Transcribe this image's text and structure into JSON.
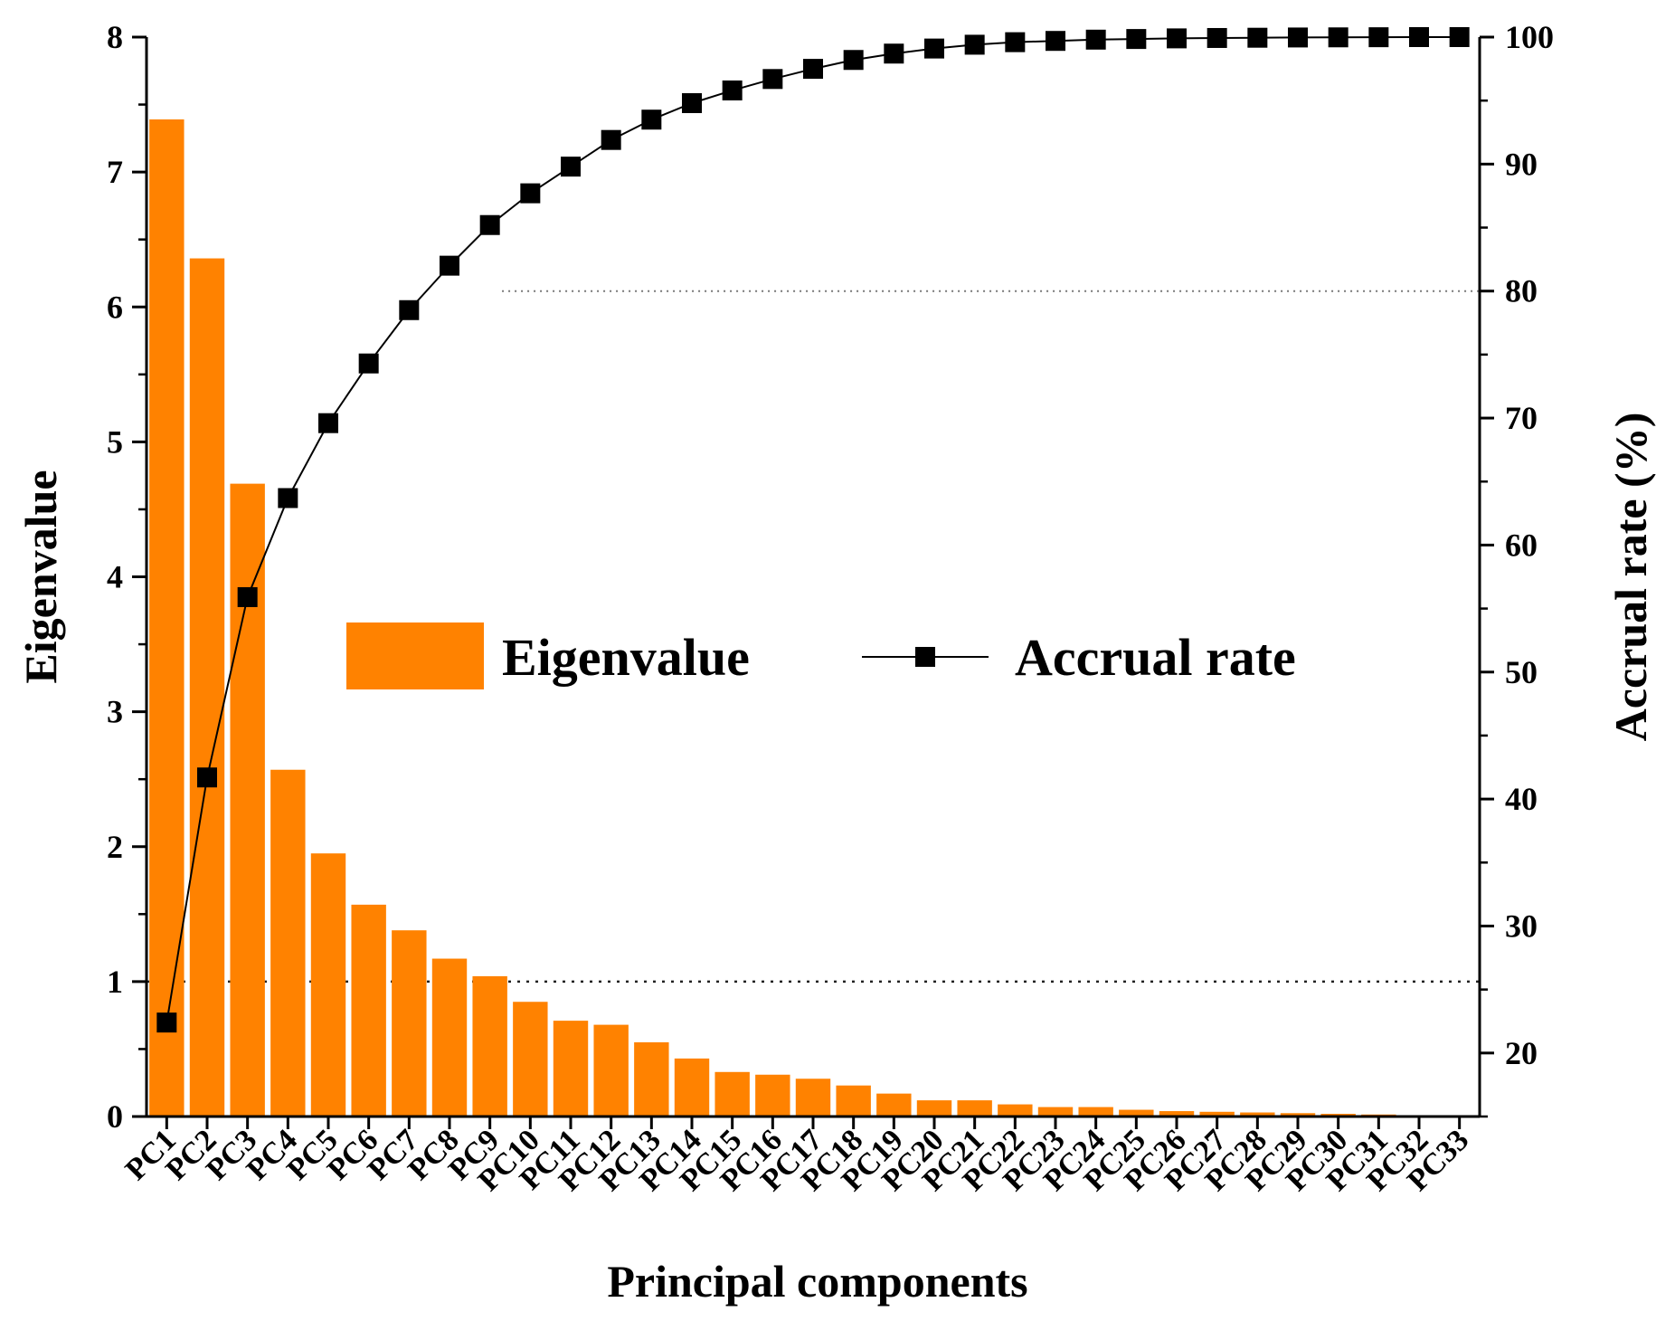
{
  "chart_data": {
    "type": "bar+line",
    "title": "",
    "xlabel": "Principal components",
    "ylabel_left": "Eigenvalue",
    "ylabel_right": "Accrual rate (%)",
    "ylim_left": [
      0,
      8
    ],
    "ylim_right": [
      15,
      100
    ],
    "yticks_left": [
      0,
      1,
      2,
      3,
      4,
      5,
      6,
      7,
      8
    ],
    "yticks_right": [
      20,
      30,
      40,
      50,
      60,
      70,
      80,
      90,
      100
    ],
    "categories": [
      "PC1",
      "PC2",
      "PC3",
      "PC4",
      "PC5",
      "PC6",
      "PC7",
      "PC8",
      "PC9",
      "PC10",
      "PC11",
      "PC12",
      "PC13",
      "PC14",
      "PC15",
      "PC16",
      "PC17",
      "PC18",
      "PC19",
      "PC20",
      "PC21",
      "PC22",
      "PC23",
      "PC24",
      "PC25",
      "PC26",
      "PC27",
      "PC28",
      "PC29",
      "PC30",
      "PC31",
      "PC32",
      "PC33"
    ],
    "series": [
      {
        "name": "Eigenvalue",
        "type": "bar",
        "axis": "left",
        "color": "#FF8200",
        "values": [
          7.39,
          6.36,
          4.69,
          2.57,
          1.95,
          1.57,
          1.38,
          1.17,
          1.04,
          0.85,
          0.71,
          0.68,
          0.55,
          0.43,
          0.33,
          0.31,
          0.28,
          0.23,
          0.17,
          0.12,
          0.12,
          0.09,
          0.07,
          0.07,
          0.05,
          0.04,
          0.035,
          0.03,
          0.025,
          0.02,
          0.015,
          0.01,
          0.01
        ]
      },
      {
        "name": "Accrual rate",
        "type": "line",
        "axis": "right",
        "color": "#000000",
        "marker": "square",
        "values": [
          22.4,
          41.7,
          55.9,
          63.7,
          69.6,
          74.3,
          78.5,
          82.0,
          85.2,
          87.7,
          89.8,
          91.9,
          93.5,
          94.8,
          95.8,
          96.7,
          97.5,
          98.2,
          98.7,
          99.1,
          99.4,
          99.6,
          99.7,
          99.8,
          99.85,
          99.9,
          99.93,
          99.95,
          99.97,
          99.98,
          99.99,
          100,
          100
        ]
      }
    ],
    "reference_lines": [
      {
        "axis": "left",
        "value": 1,
        "style": "dotted"
      },
      {
        "axis": "right",
        "value": 80,
        "style": "dotted"
      }
    ],
    "legend": {
      "placement": "center",
      "items": [
        "Eigenvalue",
        "Accrual rate"
      ]
    }
  }
}
